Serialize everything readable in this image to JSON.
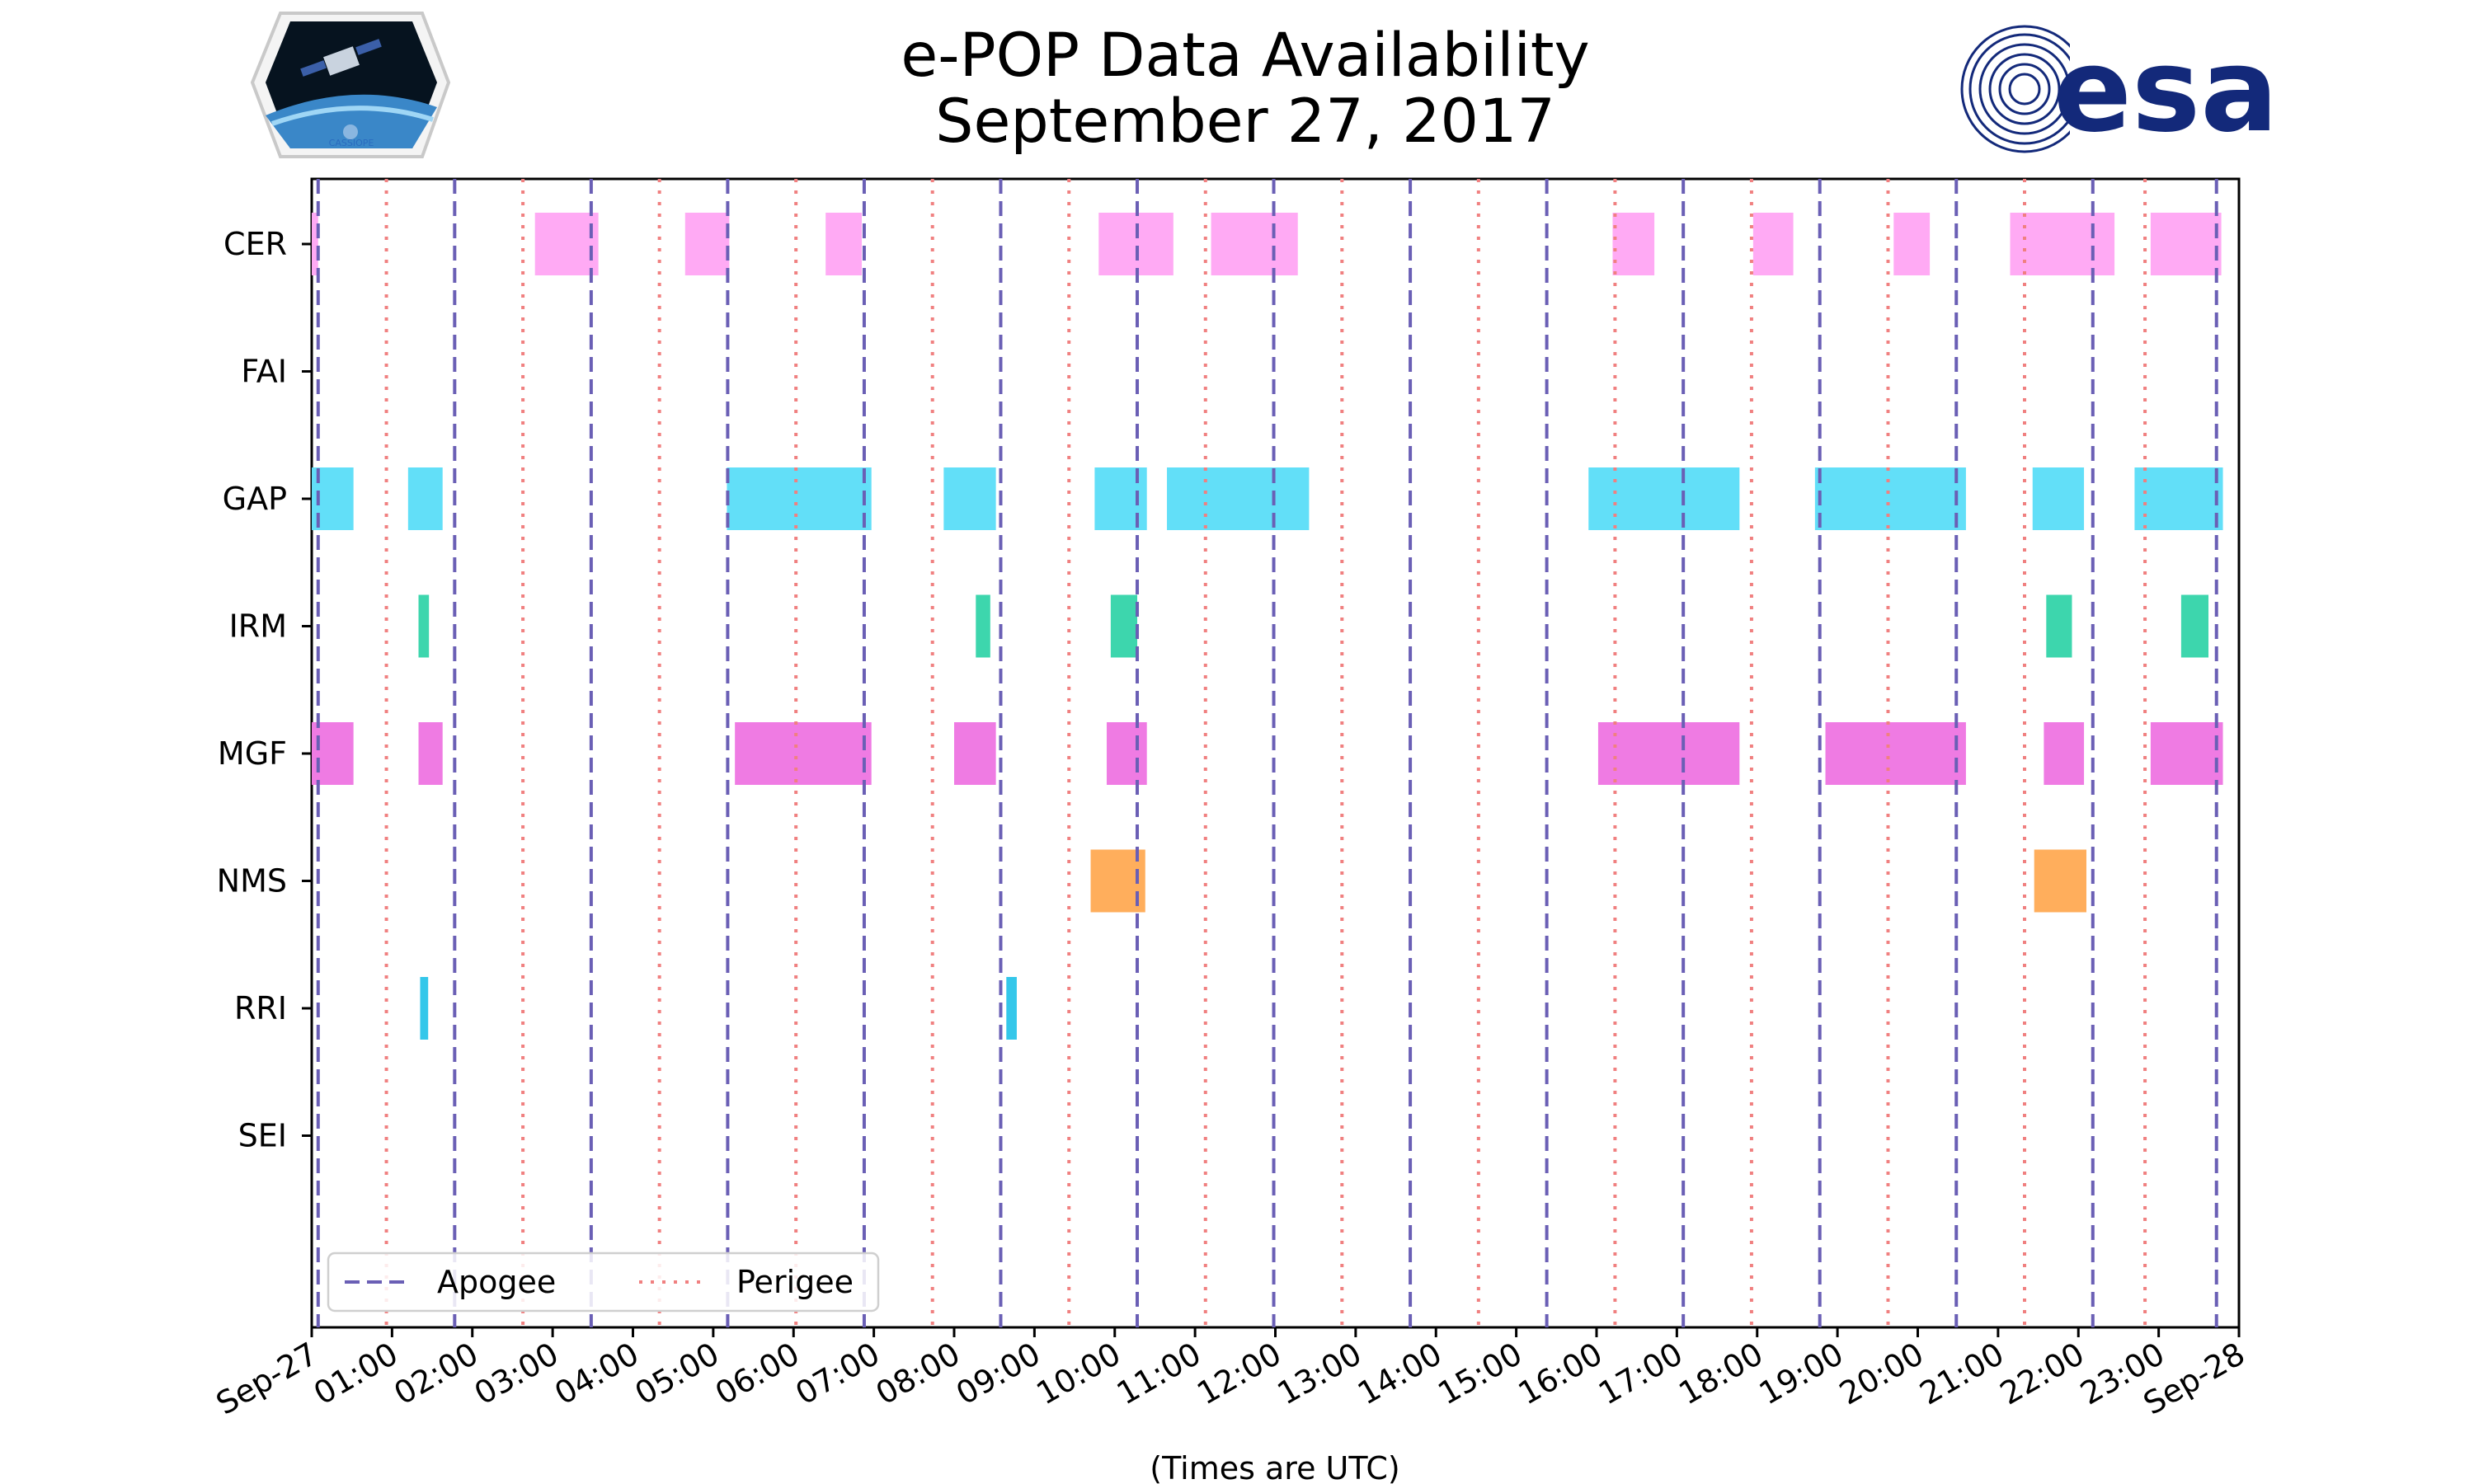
{
  "chart_data": {
    "type": "timeline",
    "title": [
      "e-POP Data Availability",
      "September 27, 2017"
    ],
    "xlabel": "(Times are UTC)",
    "x_range_hours": [
      0,
      24
    ],
    "x_tick_labels": [
      "Sep-27",
      "01:00",
      "02:00",
      "03:00",
      "04:00",
      "05:00",
      "06:00",
      "07:00",
      "08:00",
      "09:00",
      "10:00",
      "11:00",
      "12:00",
      "13:00",
      "14:00",
      "15:00",
      "16:00",
      "17:00",
      "18:00",
      "19:00",
      "20:00",
      "21:00",
      "22:00",
      "23:00",
      "Sep-28"
    ],
    "instruments": [
      "CER",
      "FAI",
      "GAP",
      "IRM",
      "MGF",
      "NMS",
      "RRI",
      "SEI"
    ],
    "intervals": {
      "CER": [
        [
          0.0,
          0.08
        ],
        [
          2.78,
          3.57
        ],
        [
          4.65,
          5.2
        ],
        [
          6.4,
          6.85
        ],
        [
          9.8,
          10.73
        ],
        [
          11.2,
          12.28
        ],
        [
          16.2,
          16.72
        ],
        [
          17.95,
          18.45
        ],
        [
          19.7,
          20.15
        ],
        [
          21.15,
          22.45
        ],
        [
          22.9,
          23.78
        ]
      ],
      "FAI": [],
      "GAP": [
        [
          0.0,
          0.52
        ],
        [
          1.2,
          1.63
        ],
        [
          5.17,
          6.97
        ],
        [
          7.87,
          8.52
        ],
        [
          9.75,
          10.4
        ],
        [
          10.65,
          12.42
        ],
        [
          15.9,
          17.78
        ],
        [
          18.72,
          20.6
        ],
        [
          21.43,
          22.07
        ],
        [
          22.7,
          23.8
        ]
      ],
      "IRM": [
        [
          1.33,
          1.46
        ],
        [
          8.27,
          8.45
        ],
        [
          9.95,
          10.28
        ],
        [
          21.6,
          21.92
        ],
        [
          23.28,
          23.62
        ]
      ],
      "MGF": [
        [
          0.0,
          0.52
        ],
        [
          1.33,
          1.63
        ],
        [
          5.27,
          6.97
        ],
        [
          8.0,
          8.52
        ],
        [
          9.9,
          10.4
        ],
        [
          16.02,
          17.78
        ],
        [
          18.85,
          20.6
        ],
        [
          21.57,
          22.07
        ],
        [
          22.9,
          23.8
        ]
      ],
      "NMS": [
        [
          9.7,
          10.38
        ],
        [
          21.45,
          22.1
        ]
      ],
      "RRI": [
        [
          1.35,
          1.45
        ],
        [
          8.65,
          8.78
        ]
      ],
      "SEI": []
    },
    "apogee_hours": [
      0.08,
      1.78,
      3.48,
      5.18,
      6.88,
      8.58,
      10.28,
      11.98,
      13.68,
      15.38,
      17.08,
      18.78,
      20.48,
      22.18,
      23.72
    ],
    "perigee_hours": [
      0.93,
      2.63,
      4.33,
      6.03,
      7.73,
      9.43,
      11.13,
      12.83,
      14.53,
      16.23,
      17.93,
      19.63,
      21.33,
      22.83
    ],
    "legend": [
      {
        "label": "Apogee",
        "style": "dashed",
        "color": "#6a5fb5"
      },
      {
        "label": "Perigee",
        "style": "dotted",
        "color": "#f08080"
      }
    ],
    "legend_location": "lower-left",
    "colors": {
      "CER": "#ffaaf4",
      "FAI": "#cccccc",
      "GAP": "#62dff8",
      "IRM": "#3dd6ad",
      "MGF": "#ef7be3",
      "NMS": "#ffae5c",
      "RRI": "#34c7ea",
      "SEI": "#cccccc",
      "apogee": "#6a5fb5",
      "perigee": "#f08080"
    }
  },
  "logos": {
    "left": "CASSIOPE",
    "right": "esa"
  }
}
